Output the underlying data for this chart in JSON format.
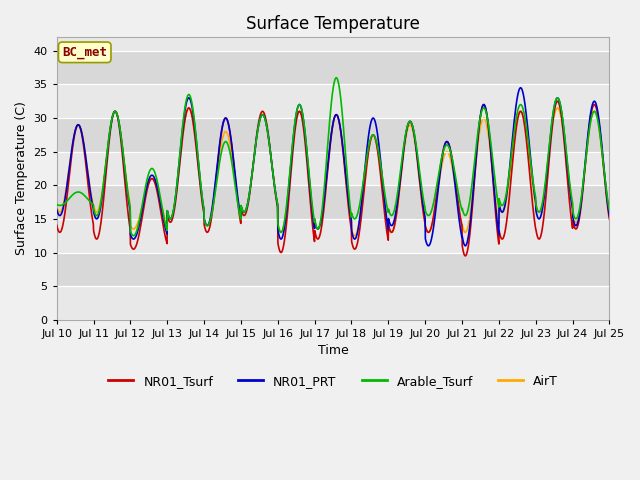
{
  "title": "Surface Temperature",
  "ylabel": "Surface Temperature (C)",
  "xlabel": "Time",
  "ylim": [
    0,
    42
  ],
  "yticks": [
    0,
    5,
    10,
    15,
    20,
    25,
    30,
    35,
    40
  ],
  "fig_bg_color": "#f0f0f0",
  "plot_bg_color_light": "#e8e8e8",
  "plot_bg_color_dark": "#d8d8d8",
  "annotation_text": "BC_met",
  "annotation_color": "#8b0000",
  "annotation_bg": "#ffffcc",
  "annotation_edge": "#999900",
  "series": {
    "NR01_Tsurf": {
      "color": "#cc0000",
      "lw": 1.2
    },
    "NR01_PRT": {
      "color": "#0000cc",
      "lw": 1.2
    },
    "Arable_Tsurf": {
      "color": "#00bb00",
      "lw": 1.2
    },
    "AirT": {
      "color": "#ffaa00",
      "lw": 1.2
    }
  },
  "xtick_labels": [
    "Jul 10",
    "Jul 11",
    "Jul 12",
    "Jul 13",
    "Jul 14",
    "Jul 15",
    "Jul 16",
    "Jul 17",
    "Jul 18",
    "Jul 19",
    "Jul 20",
    "Jul 21",
    "Jul 22",
    "Jul 23",
    "Jul 24",
    "Jul 25"
  ],
  "n_days": 15,
  "fontsize_title": 12,
  "fontsize_axis_label": 9,
  "fontsize_tick": 8,
  "fontsize_legend": 9,
  "fontsize_annotation": 9,
  "day_peaks_nro1": [
    29.0,
    31.0,
    21.0,
    31.5,
    30.0,
    31.0,
    31.0,
    30.5,
    27.5,
    29.5,
    26.5,
    32.0,
    31.0,
    32.5,
    32.0
  ],
  "day_troughs_nro1": [
    13.0,
    12.0,
    10.5,
    14.5,
    13.0,
    15.5,
    10.0,
    12.0,
    10.5,
    13.0,
    13.0,
    9.5,
    12.0,
    12.0,
    13.5
  ],
  "day_peaks_prt": [
    29.0,
    31.0,
    21.5,
    33.0,
    30.0,
    30.5,
    32.0,
    30.5,
    30.0,
    29.5,
    26.5,
    32.0,
    34.5,
    33.0,
    32.5
  ],
  "day_troughs_prt": [
    15.5,
    15.0,
    12.0,
    15.0,
    14.0,
    16.0,
    12.0,
    13.5,
    12.0,
    14.0,
    11.0,
    11.0,
    16.0,
    15.0,
    14.0
  ],
  "day_peaks_arable": [
    19.0,
    31.0,
    22.5,
    33.5,
    26.5,
    30.5,
    32.0,
    36.0,
    27.5,
    29.5,
    26.0,
    31.5,
    32.0,
    33.0,
    31.0
  ],
  "day_troughs_arable": [
    17.0,
    15.5,
    12.5,
    15.0,
    14.0,
    16.0,
    13.0,
    13.5,
    15.0,
    15.5,
    15.5,
    15.5,
    17.0,
    16.0,
    15.0
  ],
  "day_peaks_airt": [
    29.0,
    31.0,
    21.0,
    31.5,
    28.0,
    30.5,
    31.0,
    30.5,
    27.5,
    29.0,
    25.0,
    30.0,
    31.0,
    31.5,
    31.0
  ],
  "day_troughs_airt": [
    16.0,
    16.0,
    13.5,
    15.0,
    14.0,
    16.0,
    13.0,
    13.5,
    12.5,
    13.0,
    13.0,
    13.0,
    16.0,
    16.0,
    14.5
  ]
}
